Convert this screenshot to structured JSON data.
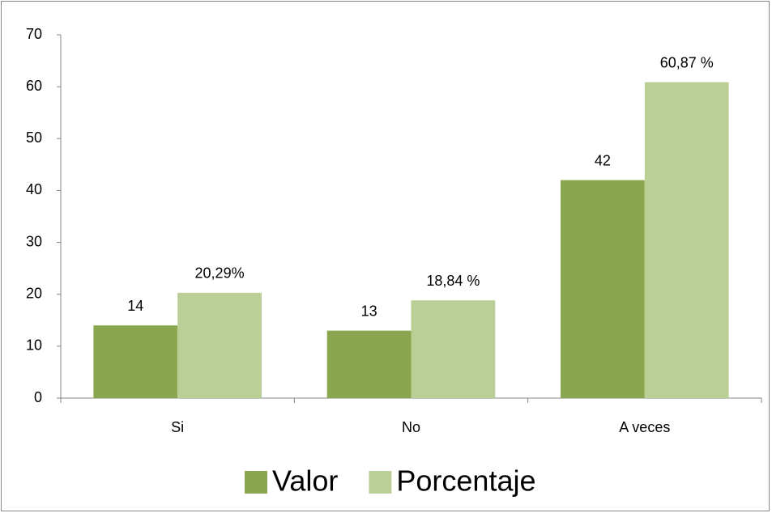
{
  "chart_data": {
    "type": "bar",
    "categories": [
      "Si",
      "No",
      "A veces"
    ],
    "series": [
      {
        "name": "Valor",
        "color": "#8aa64e",
        "values": [
          14,
          13,
          42
        ]
      },
      {
        "name": "Porcentaje",
        "color": "#bacf96",
        "values": [
          20.29,
          18.84,
          60.87
        ],
        "value_labels": [
          "20,29%",
          "18,84 %",
          "60,87 %"
        ]
      }
    ],
    "ylim": [
      0,
      70
    ],
    "yticks": [
      0,
      10,
      20,
      30,
      40,
      50,
      60,
      70
    ],
    "grid": false,
    "legend": "bottom"
  }
}
